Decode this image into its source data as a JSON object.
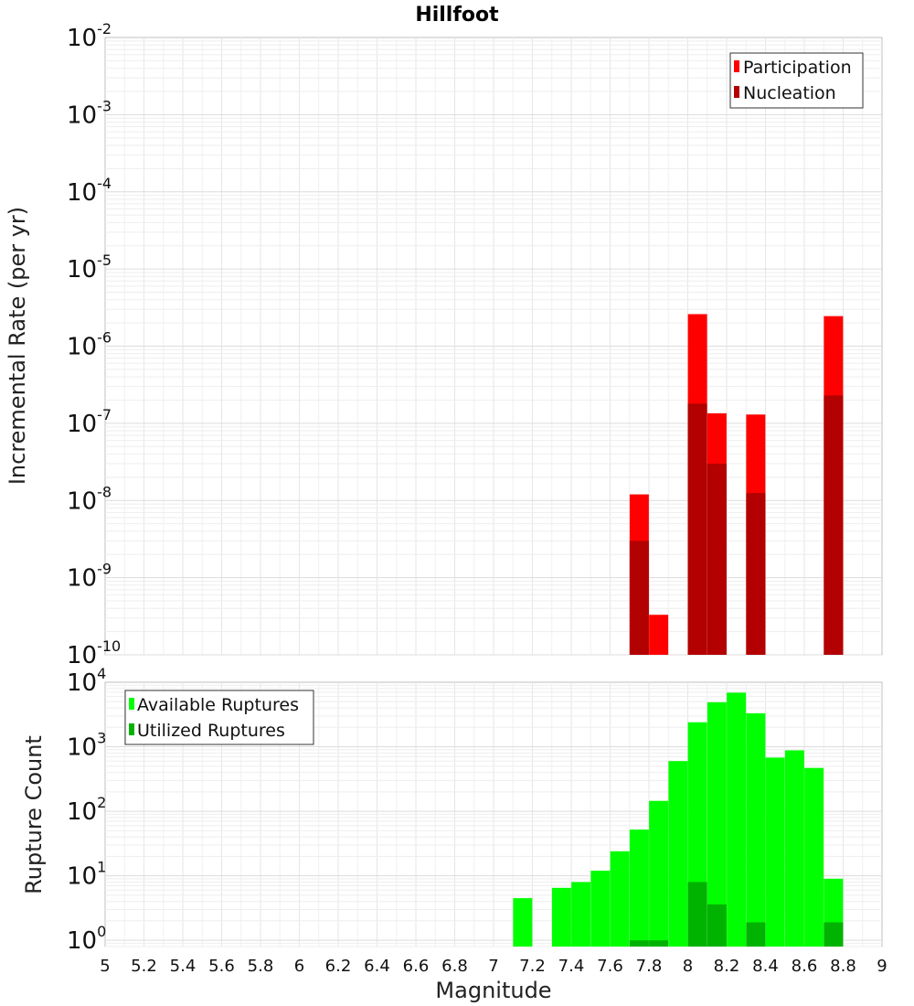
{
  "title": "Hillfoot",
  "chart_data": [
    {
      "type": "bar",
      "ylabel": "Incremental Rate (per yr)",
      "yscale": "log",
      "ylim": [
        1e-10,
        0.01
      ],
      "xlim": [
        5,
        9
      ],
      "yticks": [
        {
          "base": "10",
          "exp": "-10"
        },
        {
          "base": "10",
          "exp": "-9"
        },
        {
          "base": "10",
          "exp": "-8"
        },
        {
          "base": "10",
          "exp": "-7"
        },
        {
          "base": "10",
          "exp": "-6"
        },
        {
          "base": "10",
          "exp": "-5"
        },
        {
          "base": "10",
          "exp": "-4"
        },
        {
          "base": "10",
          "exp": "-3"
        },
        {
          "base": "10",
          "exp": "-2"
        }
      ],
      "legend_position": "top-right",
      "series": [
        {
          "name": "Participation",
          "color": "#ff0000",
          "x": [
            7.75,
            7.85,
            8.05,
            8.15,
            8.35,
            8.75
          ],
          "values": [
            1.2e-08,
            3.3e-10,
            2.6e-06,
            1.35e-07,
            1.3e-07,
            2.45e-06
          ]
        },
        {
          "name": "Nucleation",
          "color": "#b30000",
          "x": [
            7.75,
            8.05,
            8.15,
            8.35,
            8.75
          ],
          "values": [
            3e-09,
            1.8e-07,
            3e-08,
            1.25e-08,
            2.3e-07
          ]
        }
      ]
    },
    {
      "type": "bar",
      "xlabel": "Magnitude",
      "ylabel": "Rupture Count",
      "yscale": "log",
      "ylim": [
        0.8,
        10000.0
      ],
      "xlim": [
        5,
        9
      ],
      "xticks": [
        "5",
        "5.2",
        "5.4",
        "5.6",
        "5.8",
        "6",
        "6.2",
        "6.4",
        "6.6",
        "6.8",
        "7",
        "7.2",
        "7.4",
        "7.6",
        "7.8",
        "8",
        "8.2",
        "8.4",
        "8.6",
        "8.8",
        "9"
      ],
      "yticks": [
        {
          "base": "10",
          "exp": "0"
        },
        {
          "base": "10",
          "exp": "1"
        },
        {
          "base": "10",
          "exp": "2"
        },
        {
          "base": "10",
          "exp": "3"
        },
        {
          "base": "10",
          "exp": "4"
        }
      ],
      "legend_position": "top-left",
      "series": [
        {
          "name": "Available Ruptures",
          "color": "#00ff00",
          "x": [
            7.15,
            7.35,
            7.45,
            7.55,
            7.65,
            7.75,
            7.85,
            7.95,
            8.05,
            8.15,
            8.25,
            8.35,
            8.45,
            8.55,
            8.65,
            8.75
          ],
          "values": [
            4.5,
            6.5,
            8,
            12,
            24,
            52,
            145,
            600,
            2400,
            4900,
            6900,
            3300,
            680,
            880,
            470,
            9
          ]
        },
        {
          "name": "Utilized Ruptures",
          "color": "#00b300",
          "x": [
            7.75,
            7.85,
            8.05,
            8.15,
            8.35,
            8.75
          ],
          "values": [
            1,
            1,
            8,
            3.6,
            1.9,
            1.9
          ]
        }
      ]
    }
  ]
}
